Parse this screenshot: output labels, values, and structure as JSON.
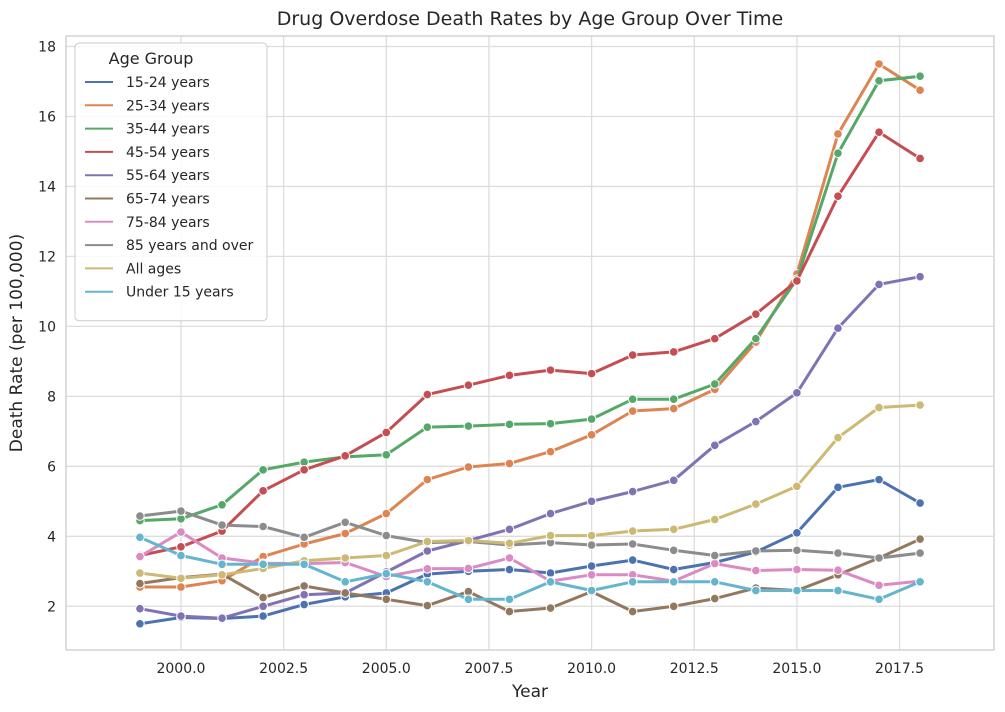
{
  "chart_data": {
    "type": "line",
    "title": "Drug Overdose Death Rates by Age Group Over Time",
    "xlabel": "Year",
    "ylabel": "Death Rate (per 100,000)",
    "xlim": [
      1997.2,
      2019.8
    ],
    "ylim": [
      0.75,
      18.3
    ],
    "x_ticks": [
      2000.0,
      2002.5,
      2005.0,
      2007.5,
      2010.0,
      2012.5,
      2015.0,
      2017.5
    ],
    "x_tick_labels": [
      "2000.0",
      "2002.5",
      "2005.0",
      "2007.5",
      "2010.0",
      "2012.5",
      "2015.0",
      "2017.5"
    ],
    "y_ticks": [
      2,
      4,
      6,
      8,
      10,
      12,
      14,
      16,
      18
    ],
    "y_tick_labels": [
      "2",
      "4",
      "6",
      "8",
      "10",
      "12",
      "14",
      "16",
      "18"
    ],
    "grid": true,
    "legend": {
      "title": "Age Group",
      "placement": "top-left"
    },
    "x": [
      1999,
      2000,
      2001,
      2002,
      2003,
      2004,
      2005,
      2006,
      2007,
      2008,
      2009,
      2010,
      2011,
      2012,
      2013,
      2014,
      2015,
      2016,
      2017,
      2018
    ],
    "series": [
      {
        "name": "15-24 years",
        "color": "#4c72b0",
        "values": [
          1.5,
          1.68,
          1.65,
          1.72,
          2.05,
          2.27,
          2.38,
          2.92,
          3.0,
          3.05,
          2.95,
          3.15,
          3.32,
          3.05,
          3.25,
          3.55,
          4.1,
          5.4,
          5.62,
          4.95
        ]
      },
      {
        "name": "25-34 years",
        "color": "#dd8452",
        "values": [
          2.55,
          2.55,
          2.73,
          3.42,
          3.78,
          4.08,
          4.65,
          5.62,
          5.98,
          6.08,
          6.42,
          6.9,
          7.58,
          7.65,
          8.2,
          9.55,
          11.5,
          15.5,
          17.5,
          16.75
        ]
      },
      {
        "name": "35-44 years",
        "color": "#55a868",
        "values": [
          4.45,
          4.5,
          4.9,
          5.9,
          6.12,
          6.27,
          6.33,
          7.12,
          7.15,
          7.2,
          7.22,
          7.35,
          7.92,
          7.92,
          8.35,
          9.65,
          11.35,
          14.95,
          17.02,
          17.15
        ]
      },
      {
        "name": "45-54 years",
        "color": "#c44e52",
        "values": [
          3.45,
          3.7,
          4.15,
          5.3,
          5.9,
          6.3,
          6.97,
          8.05,
          8.32,
          8.6,
          8.75,
          8.65,
          9.18,
          9.27,
          9.65,
          10.35,
          11.3,
          13.72,
          15.55,
          14.8
        ]
      },
      {
        "name": "55-64 years",
        "color": "#8172b3",
        "values": [
          1.93,
          1.72,
          1.66,
          2.0,
          2.33,
          2.38,
          2.98,
          3.58,
          3.88,
          4.2,
          4.65,
          5.0,
          5.28,
          5.6,
          6.6,
          7.28,
          8.1,
          9.95,
          11.2,
          11.42
        ]
      },
      {
        "name": "65-74 years",
        "color": "#937860",
        "values": [
          2.65,
          2.82,
          2.92,
          2.25,
          2.58,
          2.38,
          2.2,
          2.02,
          2.42,
          1.85,
          1.95,
          2.42,
          1.85,
          2.0,
          2.22,
          2.52,
          2.45,
          2.9,
          3.38,
          3.92
        ]
      },
      {
        "name": "75-84 years",
        "color": "#da8bc3",
        "values": [
          3.42,
          4.12,
          3.38,
          3.23,
          3.22,
          3.25,
          2.85,
          3.07,
          3.08,
          3.38,
          2.72,
          2.9,
          2.9,
          2.72,
          3.22,
          3.02,
          3.05,
          3.03,
          2.6,
          2.72
        ]
      },
      {
        "name": "85 years and over",
        "color": "#8c8c8c",
        "values": [
          4.58,
          4.72,
          4.32,
          4.28,
          3.97,
          4.4,
          4.02,
          3.82,
          3.85,
          3.75,
          3.82,
          3.75,
          3.78,
          3.6,
          3.45,
          3.58,
          3.6,
          3.52,
          3.38,
          3.52
        ]
      },
      {
        "name": "All ages",
        "color": "#ccb974",
        "values": [
          2.95,
          2.8,
          2.9,
          3.08,
          3.3,
          3.38,
          3.45,
          3.85,
          3.88,
          3.8,
          4.02,
          4.02,
          4.15,
          4.2,
          4.48,
          4.92,
          5.43,
          6.82,
          7.68,
          7.75
        ]
      },
      {
        "name": "Under 15 years",
        "color": "#64b5cd",
        "values": [
          3.97,
          3.45,
          3.2,
          3.2,
          3.2,
          2.7,
          2.93,
          2.7,
          2.2,
          2.2,
          2.7,
          2.45,
          2.7,
          2.7,
          2.7,
          2.45,
          2.45,
          2.45,
          2.2,
          2.7
        ]
      }
    ]
  }
}
